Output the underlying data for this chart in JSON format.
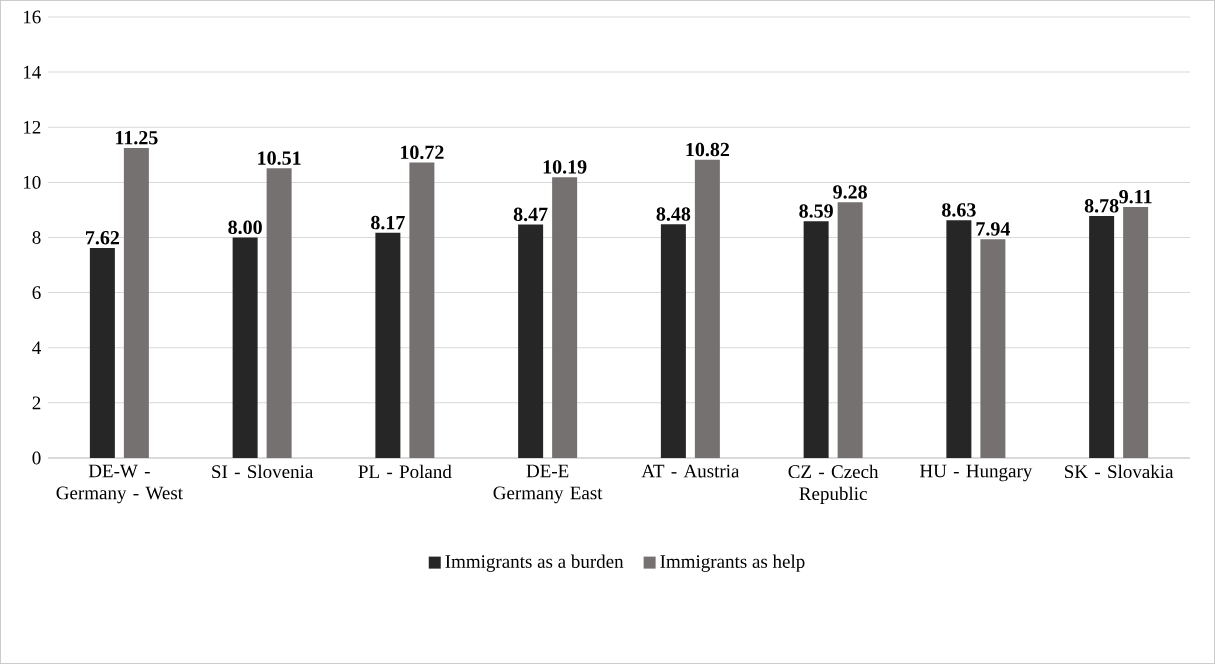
{
  "chart_data": {
    "type": "bar",
    "categories": [
      "DE-W - Germany - West",
      "SI - Slovenia",
      "PL - Poland",
      "DE-E Germany East",
      "AT - Austria",
      "CZ - Czech Republic",
      "HU - Hungary",
      "SK - Slovakia"
    ],
    "series": [
      {
        "name": "Immigrants as a burden",
        "color": "#262626",
        "values": [
          7.62,
          8.0,
          8.17,
          8.47,
          8.48,
          8.59,
          8.63,
          8.78
        ],
        "value_labels": [
          "7.62",
          "8.00",
          "8.17",
          "8.47",
          "8.48",
          "8.59",
          "8.63",
          "8.78"
        ]
      },
      {
        "name": "Immigrants as help",
        "color": "#767171",
        "values": [
          11.25,
          10.51,
          10.72,
          10.19,
          10.82,
          9.28,
          7.94,
          9.11
        ],
        "value_labels": [
          "11.25",
          "10.51",
          "10.72",
          "10.19",
          "10.82",
          "9.28",
          "7.94",
          "9.11"
        ]
      }
    ],
    "ylim": [
      0,
      16
    ],
    "yticks": [
      0,
      2,
      4,
      6,
      8,
      10,
      12,
      14,
      16
    ],
    "grid": "y",
    "legend": "bottom"
  }
}
